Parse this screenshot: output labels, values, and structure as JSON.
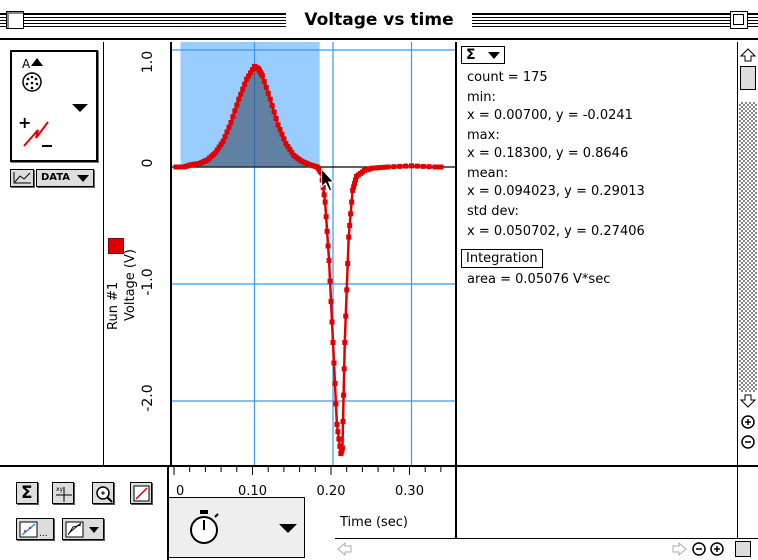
{
  "window": {
    "title": "Voltage vs time"
  },
  "left_panel": {
    "tool_icon": "digital-input-plug-icon",
    "data_button_label": "DATA"
  },
  "graph": {
    "y_axis_label": "Voltage (V)",
    "run_label": "Run #1",
    "x_axis_label": "Time (sec)",
    "y_ticks": [
      "1.0",
      "0",
      "-1.0",
      "-2.0"
    ],
    "x_ticks": [
      "0",
      "0.10",
      "0.20",
      "0.30"
    ],
    "series_color": "#e00000",
    "selection_color": "#99ccff",
    "grid_color": "#3399ff"
  },
  "chart_data": {
    "type": "line",
    "xlabel": "Time (sec)",
    "ylabel": "Voltage (V)",
    "xlim": [
      0,
      0.36
    ],
    "ylim": [
      -2.5,
      1.0
    ],
    "series": [
      {
        "name": "Run #1",
        "x": [
          0.0,
          0.01,
          0.02,
          0.03,
          0.04,
          0.05,
          0.06,
          0.07,
          0.08,
          0.09,
          0.1,
          0.105,
          0.11,
          0.12,
          0.13,
          0.14,
          0.15,
          0.16,
          0.17,
          0.18,
          0.185,
          0.19,
          0.195,
          0.2,
          0.205,
          0.21,
          0.212,
          0.215,
          0.22,
          0.225,
          0.23,
          0.24,
          0.25,
          0.27,
          0.3,
          0.33,
          0.34
        ],
        "y": [
          0.0,
          0.0,
          0.02,
          0.03,
          0.06,
          0.12,
          0.22,
          0.38,
          0.58,
          0.75,
          0.86,
          0.84,
          0.78,
          0.58,
          0.36,
          0.2,
          0.1,
          0.05,
          0.02,
          0.0,
          -0.05,
          -0.3,
          -0.8,
          -1.5,
          -2.2,
          -2.45,
          -2.4,
          -1.5,
          -0.6,
          -0.2,
          -0.08,
          -0.03,
          -0.01,
          0.0,
          0.01,
          0.0,
          0.0
        ]
      }
    ],
    "integration_region": [
      0.007,
      0.183
    ]
  },
  "stats": {
    "menu_symbol": "Σ",
    "lines": [
      "count = 175",
      "min:",
      "x = 0.00700, y = -0.0241",
      "max:",
      "x = 0.18300, y = 0.8646",
      "mean:",
      "x = 0.094023, y = 0.29013",
      "std dev:",
      "x = 0.050702, y = 0.27406"
    ],
    "integration_button": "Integration",
    "area_text": "area = 0.05076 V*sec"
  },
  "toolbar": {
    "buttons": [
      "statistics",
      "examine",
      "zoom-in",
      "curve-fit"
    ],
    "row2": [
      "linear-fit",
      "tangent"
    ],
    "timer_icon": "stopwatch-icon"
  }
}
